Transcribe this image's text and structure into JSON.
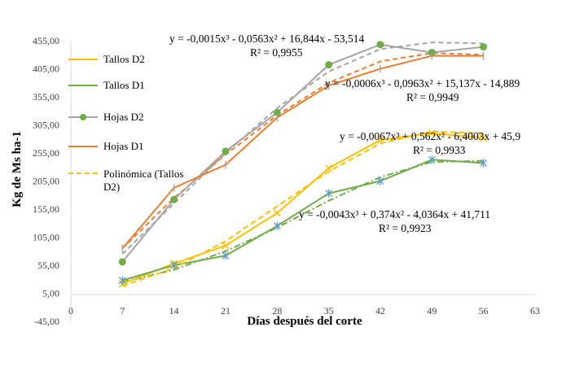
{
  "chart_data": {
    "type": "line",
    "xlabel": "Días después del corte",
    "ylabel": "Kg de Ms ha-1",
    "xlim": [
      0,
      63
    ],
    "ylim": [
      -45,
      455
    ],
    "x_ticks": [
      "0",
      "7",
      "14",
      "21",
      "28",
      "35",
      "42",
      "49",
      "56",
      "63"
    ],
    "y_ticks": [
      "-45,00",
      "5,00",
      "55,00",
      "105,00",
      "155,00",
      "205,00",
      "255,00",
      "305,00",
      "355,00",
      "405,00",
      "455,00"
    ],
    "grid": false,
    "legend_position": "left",
    "series": [
      {
        "name": "Tallos D2",
        "color": "#ffc000",
        "marker": "x",
        "x": [
          7,
          14,
          21,
          28,
          35,
          42,
          49,
          56
        ],
        "y": [
          22,
          58,
          90,
          148,
          228,
          278,
          290,
          282
        ]
      },
      {
        "name": "Tallos D1",
        "color": "#70ad47",
        "marker": "asterisk",
        "x": [
          7,
          14,
          21,
          28,
          35,
          42,
          49,
          56
        ],
        "y": [
          28,
          55,
          72,
          125,
          183,
          205,
          243,
          237
        ]
      },
      {
        "name": "Hojas D2",
        "color": "#a5a5a5",
        "marker": "circle",
        "marker_fill": "#70ad47",
        "x": [
          7,
          14,
          21,
          28,
          35,
          42,
          49,
          56
        ],
        "y": [
          61,
          172,
          258,
          327,
          412,
          448,
          434,
          444
        ]
      },
      {
        "name": "Hojas D1",
        "color": "#ed7d31",
        "marker": "plus",
        "x": [
          7,
          14,
          21,
          28,
          35,
          42,
          49,
          56
        ],
        "y": [
          85,
          193,
          234,
          318,
          375,
          405,
          428,
          428
        ]
      },
      {
        "name": "Polinómica (Tallos D2)",
        "color": "#ffc000",
        "dashed": true,
        "x": [
          7,
          14,
          21,
          28,
          35,
          42,
          49,
          56
        ],
        "y": [
          18,
          50,
          98,
          160,
          222,
          272,
          293,
          290
        ]
      }
    ],
    "trendlines": [
      {
        "of": "Tallos D1",
        "color": "#70ad47",
        "style": "dash-dot",
        "x": [
          7,
          14,
          21,
          28,
          35,
          42,
          49,
          56
        ],
        "y": [
          25,
          47,
          80,
          122,
          170,
          212,
          239,
          241
        ]
      },
      {
        "of": "Hojas D2",
        "color": "#a5a5a5",
        "style": "dash",
        "x": [
          7,
          14,
          21,
          28,
          35,
          42,
          49,
          56
        ],
        "y": [
          75,
          165,
          255,
          335,
          400,
          440,
          452,
          450
        ]
      },
      {
        "of": "Hojas D1",
        "color": "#ed7d31",
        "style": "dash",
        "x": [
          7,
          14,
          21,
          28,
          35,
          42,
          49,
          56
        ],
        "y": [
          85,
          175,
          252,
          322,
          380,
          418,
          433,
          430
        ]
      }
    ],
    "annotations": [
      {
        "line1": "y = -0,0015x³ - 0,0563x² + 16,844x - 53,514",
        "line2": "R² = 0,9955"
      },
      {
        "line1": "y = -0,0006x³ - 0,0963x² + 15,137x - 14,889",
        "line2": "R² = 0,9949"
      },
      {
        "line1": "y = -0,0067x³ + 0,562x² - 6,4003x + 45,9",
        "line2": "R² = 0,9933"
      },
      {
        "line1": "y = -0,0043x³ + 0,374x² - 4,0364x + 41,711",
        "line2": "R² = 0,9923"
      }
    ]
  }
}
